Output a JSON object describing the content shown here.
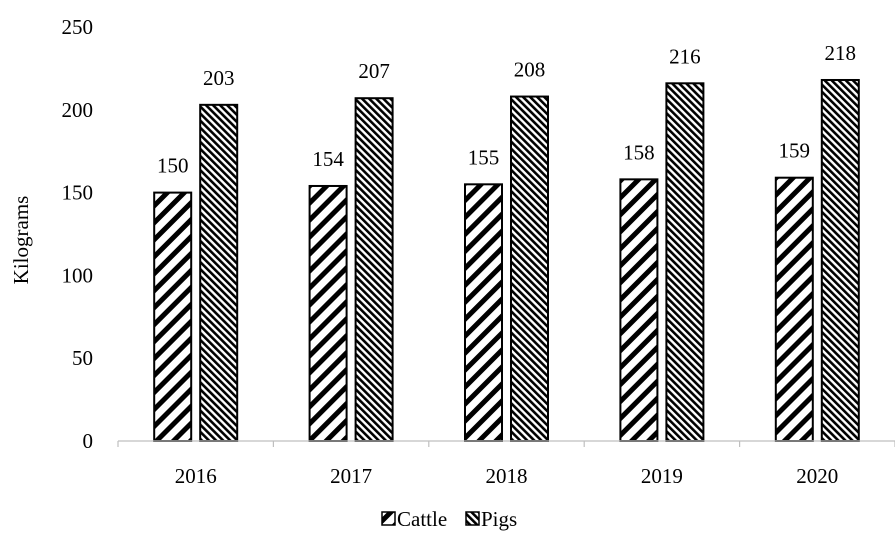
{
  "chart_data": {
    "type": "bar",
    "categories": [
      "2016",
      "2017",
      "2018",
      "2019",
      "2020"
    ],
    "series": [
      {
        "name": "Cattle",
        "values": [
          150,
          154,
          155,
          158,
          159
        ],
        "pattern": "wide-diagonal-stripes"
      },
      {
        "name": "Pigs",
        "values": [
          203,
          207,
          208,
          216,
          218
        ],
        "pattern": "fine-diagonal-hatch"
      }
    ],
    "ylabel": "Kilograms",
    "xlabel": "",
    "ylim": [
      0,
      250
    ],
    "yticks": [
      0,
      50,
      100,
      150,
      200,
      250
    ],
    "grid": false,
    "legend_position": "bottom",
    "data_labels": true,
    "bar_edge_color": "#000000"
  }
}
